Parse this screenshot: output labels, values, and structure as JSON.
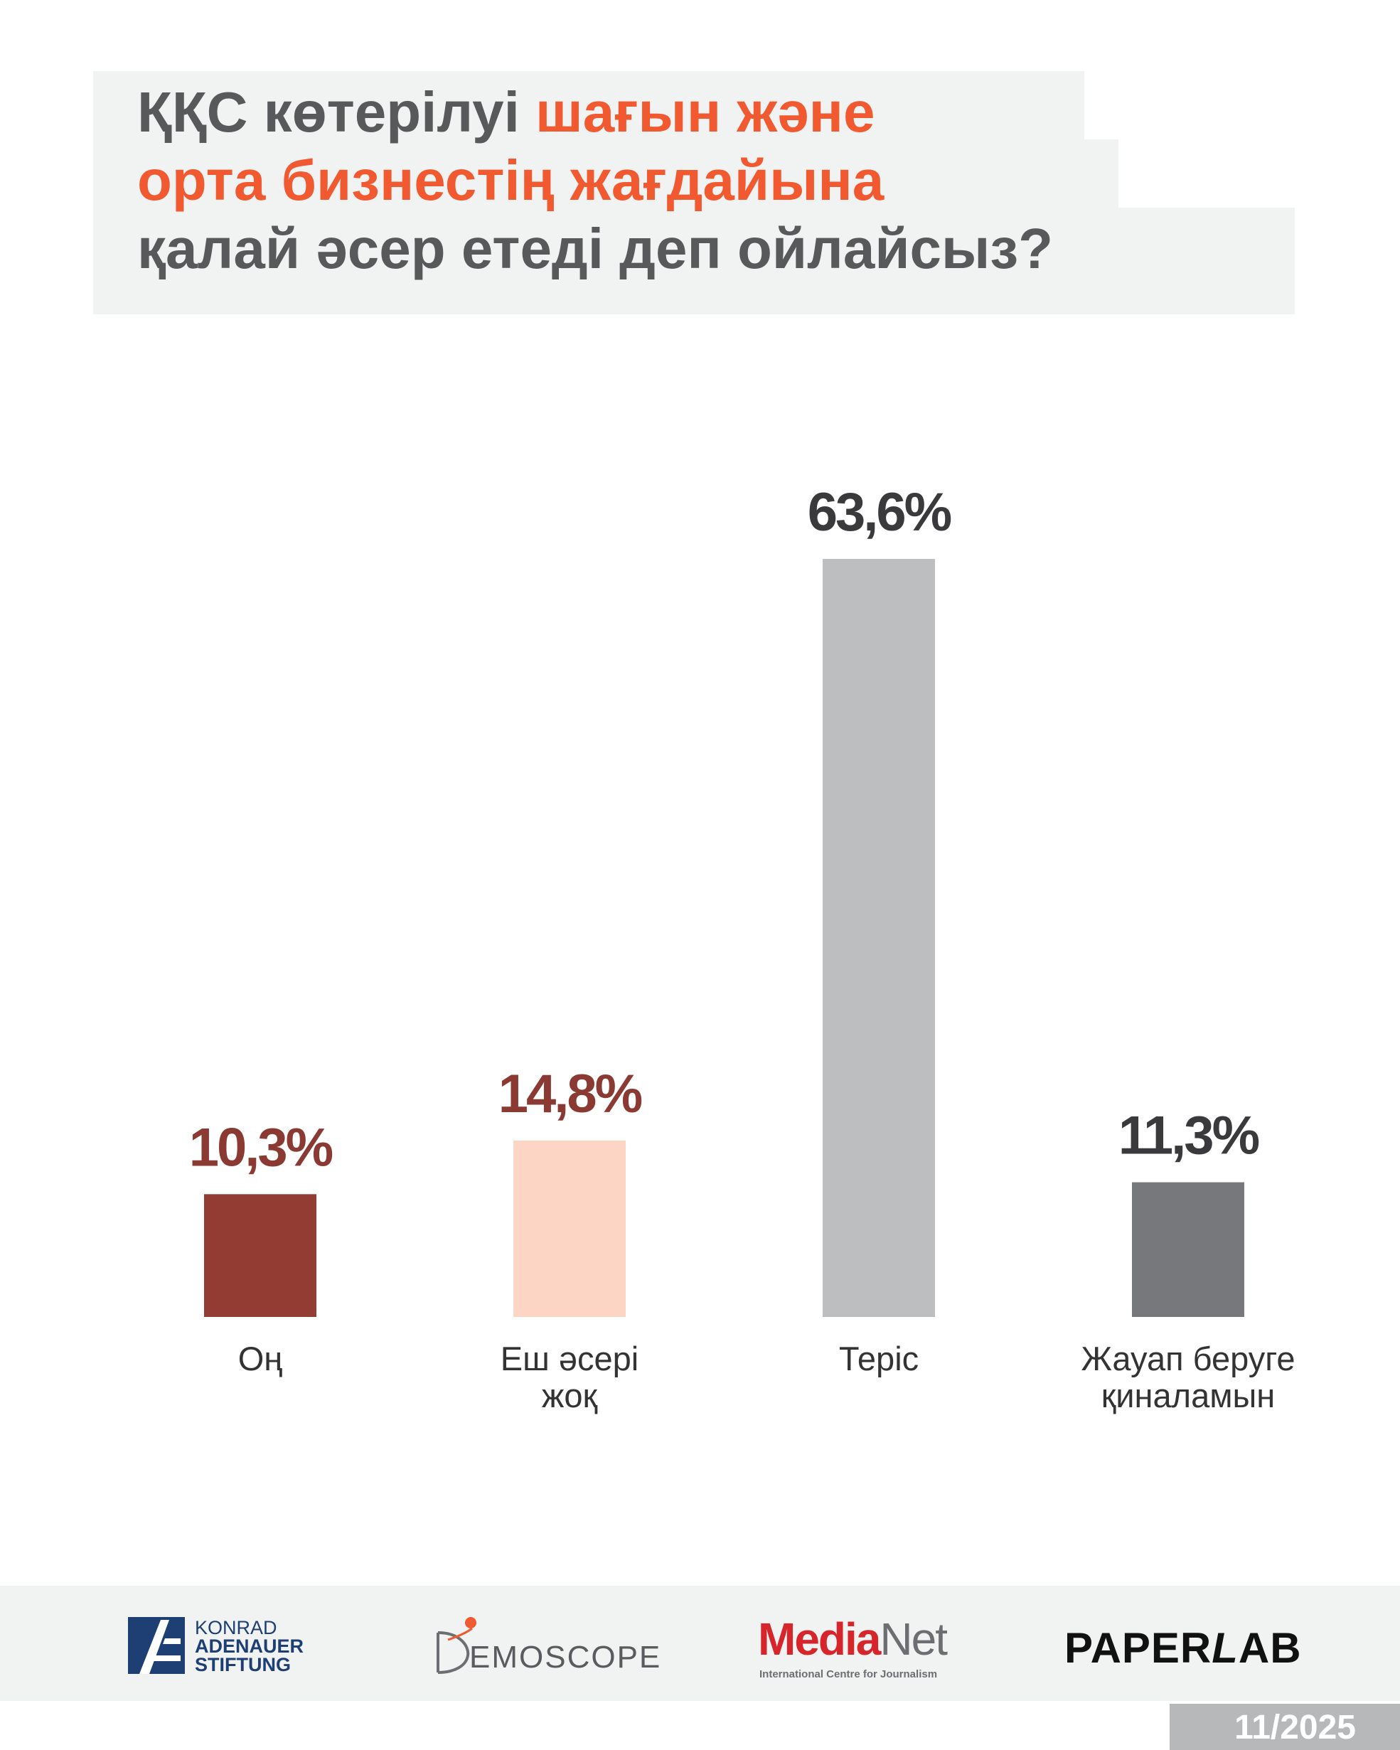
{
  "title": {
    "part1": "ҚҚС көтерілуі ",
    "accent_line1": "шағын және",
    "accent_line2": "орта бизнестің жағдайына",
    "line3": "қалай әсер етеді деп ойлайсыз?"
  },
  "colors": {
    "title_text": "#58595b",
    "title_accent": "#f15a31",
    "title_bg": "#f1f2f2",
    "value_label_red": "#8b3a33",
    "value_label_dark": "#3a3a3c"
  },
  "chart_data": {
    "type": "bar",
    "categories": [
      "Оң",
      "Еш әсері жоқ",
      "Теріс",
      "Жауап беруге қиналамын"
    ],
    "category_lines": [
      [
        "Оң"
      ],
      [
        "Еш әсері",
        "жоқ"
      ],
      [
        "Теріс"
      ],
      [
        "Жауап беруге",
        "қиналамын"
      ]
    ],
    "values": [
      10.3,
      14.8,
      63.6,
      11.3
    ],
    "value_labels": [
      "10,3%",
      "14,8%",
      "63,6%",
      "11,3%"
    ],
    "bar_colors": [
      "#933c33",
      "#fcd5c4",
      "#bdbec0",
      "#77787b"
    ],
    "label_colors": [
      "#8b3a33",
      "#8b3a33",
      "#3a3a3c",
      "#3a3a3c"
    ],
    "unit": "%",
    "ylim": [
      0,
      63.6
    ],
    "grid": false,
    "legend": "none",
    "xlabel": "",
    "ylabel": ""
  },
  "footer": {
    "kas": {
      "line1": "KONRAD",
      "line2": "ADENAUER",
      "line3": "STIFTUNG",
      "icon": "kas-logo-icon"
    },
    "demoscope": {
      "text": "EMOSCOPE",
      "icon": "demoscope-logo-icon"
    },
    "medianet": {
      "media": "Media",
      "net": "Net",
      "subtitle": "International Centre for Journalism"
    },
    "paperlab": {
      "paper": "PAPER",
      "l": "L",
      "ab": "AB"
    },
    "date": "11/2025"
  }
}
